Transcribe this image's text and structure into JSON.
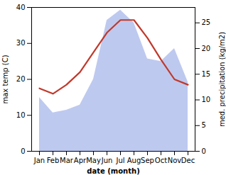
{
  "chart_data": {
    "type": "line",
    "categories": [
      "Jan",
      "Feb",
      "Mar",
      "Apr",
      "May",
      "Jun",
      "Jul",
      "Aug",
      "Sep",
      "Oct",
      "Nov",
      "Dec"
    ],
    "series": [
      {
        "type": "area",
        "axis": "y2",
        "color": "#b3bfec",
        "values": [
          10.5,
          7.5,
          8.0,
          9.0,
          14.0,
          25.5,
          27.5,
          25.0,
          18.0,
          17.5,
          20.0,
          13.5
        ]
      },
      {
        "type": "line",
        "color": "#c0392b",
        "values": [
          17.5,
          16.0,
          18.5,
          22.0,
          27.5,
          33.0,
          36.5,
          36.5,
          31.5,
          25.5,
          20.0,
          18.5
        ]
      }
    ],
    "xlabel": "date (month)",
    "ylabel": "max temp (C)",
    "y2label": "med. precipitation (kg/m2)",
    "ylim": [
      0,
      40
    ],
    "yticks": [
      0,
      10,
      20,
      30,
      40
    ],
    "y2lim": [
      0,
      28
    ],
    "y2ticks": [
      0,
      5,
      10,
      15,
      20,
      25
    ],
    "grid": false
  }
}
